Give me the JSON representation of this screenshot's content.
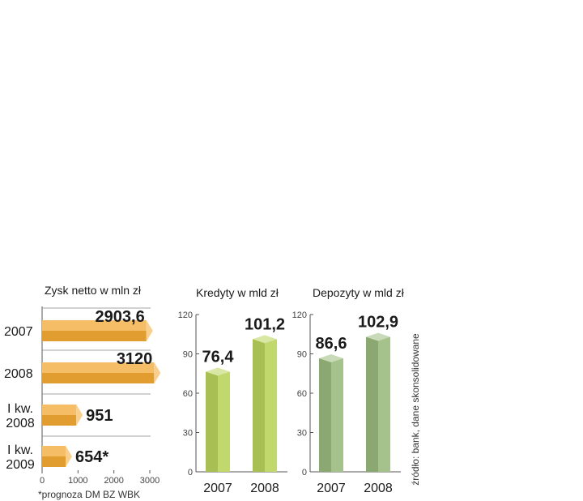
{
  "chart_data": [
    {
      "type": "bar",
      "orientation": "horizontal",
      "title": "Zysk netto w mln zł",
      "categories": [
        "2007",
        "2008",
        "I kw. 2008",
        "I kw. 2009"
      ],
      "category_lines": [
        [
          "2007"
        ],
        [
          "2008"
        ],
        [
          "I kw.",
          "2008"
        ],
        [
          "I kw.",
          "2009"
        ]
      ],
      "values": [
        2903.6,
        3120,
        951,
        654
      ],
      "value_labels": [
        "2903,6",
        "3120",
        "951",
        "654*"
      ],
      "xlim": [
        0,
        3000
      ],
      "xticks": [
        "0",
        "1000",
        "2000",
        "3000"
      ],
      "note": "*prognoza DM BZ WBK",
      "color": "#f0a733"
    },
    {
      "type": "bar",
      "title": "Kredyty w mld zł",
      "categories": [
        "2007",
        "2008"
      ],
      "values": [
        76.4,
        101.2
      ],
      "value_labels": [
        "76,4",
        "101,2"
      ],
      "ylim": [
        0,
        120
      ],
      "yticks": [
        "0",
        "30",
        "60",
        "90",
        "120"
      ],
      "color": "#b9d45c"
    },
    {
      "type": "bar",
      "title": "Depozyty w mld zł",
      "categories": [
        "2007",
        "2008"
      ],
      "values": [
        86.6,
        102.9
      ],
      "value_labels": [
        "86,6",
        "102,9"
      ],
      "ylim": [
        0,
        120
      ],
      "yticks": [
        "0",
        "30",
        "60",
        "90",
        "120"
      ],
      "color": "#9cbb7f"
    }
  ],
  "source": "źródło: bank, dane skonsolidowane"
}
